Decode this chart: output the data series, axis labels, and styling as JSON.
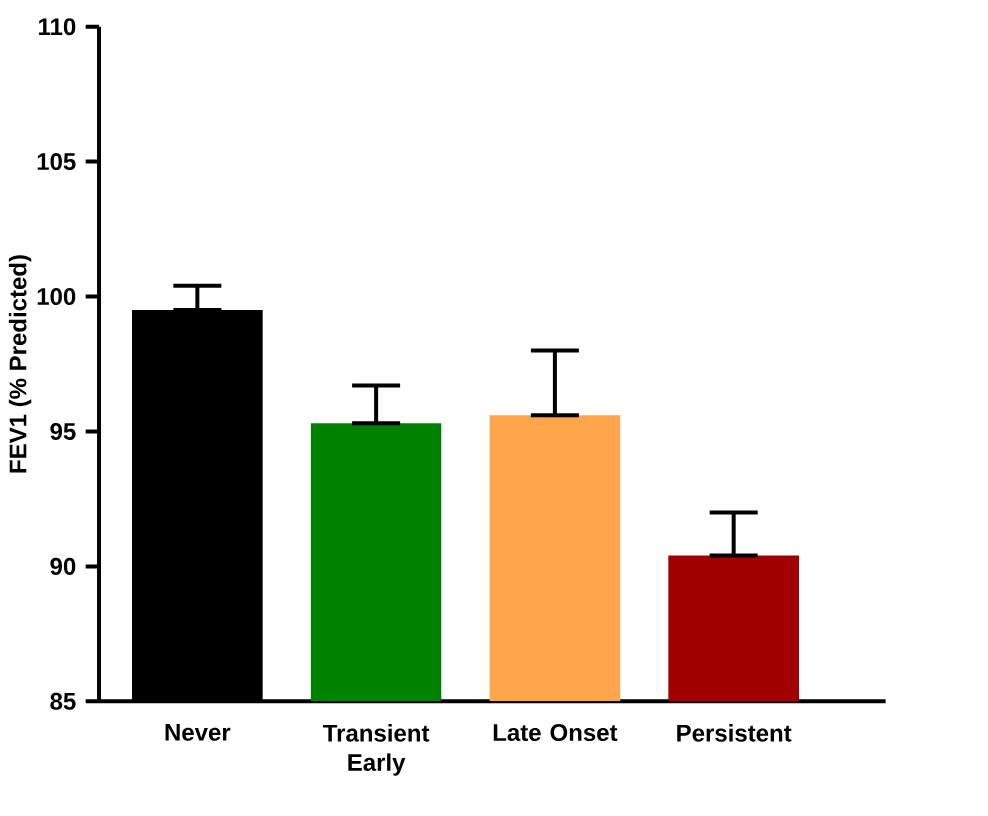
{
  "chart_data": {
    "type": "bar",
    "ylabel": "FEV1 (% Predicted)",
    "categories": [
      "Never",
      "Transient Early",
      "Late Onset",
      "Persistent"
    ],
    "values": [
      99.5,
      95.3,
      95.6,
      90.4
    ],
    "colors": [
      "#000000",
      "#008000",
      "#ffa64d",
      "#a00000"
    ],
    "errors": [
      [
        99.5,
        100.4
      ],
      [
        95.3,
        96.7
      ],
      [
        95.6,
        98.0
      ],
      [
        90.4,
        92.0
      ]
    ],
    "ylim": [
      85,
      110
    ],
    "yticks": [
      85,
      90,
      95,
      100,
      105,
      110
    ]
  }
}
